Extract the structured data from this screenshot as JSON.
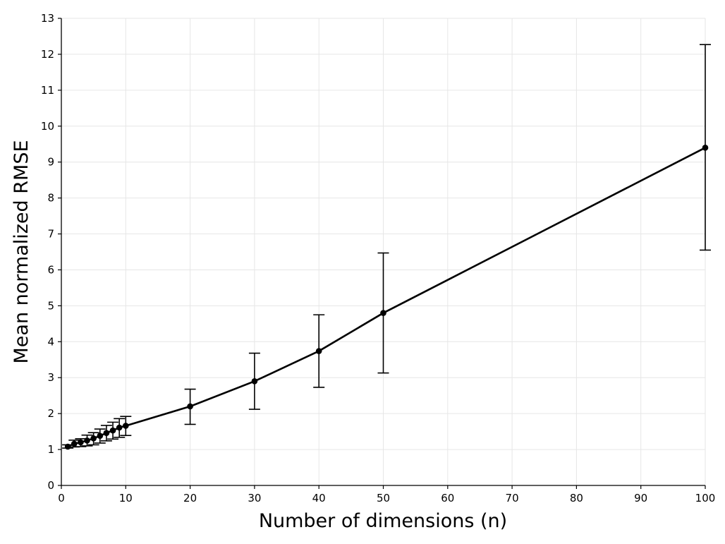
{
  "chart_data": {
    "type": "line",
    "title": "",
    "xlabel": "Number of dimensions (n)",
    "ylabel": "Mean normalized RMSE",
    "xlim": [
      0,
      100
    ],
    "ylim": [
      0,
      13
    ],
    "xticks": [
      0,
      10,
      20,
      30,
      40,
      50,
      60,
      70,
      80,
      90,
      100
    ],
    "yticks": [
      0,
      1,
      2,
      3,
      4,
      5,
      6,
      7,
      8,
      9,
      10,
      11,
      12,
      13
    ],
    "grid": true,
    "series": [
      {
        "color": "#000000",
        "error_bars": true,
        "points": [
          {
            "x": 1,
            "y": 1.08,
            "err_low": 1.04,
            "err_high": 1.13
          },
          {
            "x": 2,
            "y": 1.16,
            "err_low": 1.07,
            "err_high": 1.26
          },
          {
            "x": 3,
            "y": 1.2,
            "err_low": 1.08,
            "err_high": 1.3
          },
          {
            "x": 4,
            "y": 1.25,
            "err_low": 1.1,
            "err_high": 1.4
          },
          {
            "x": 5,
            "y": 1.31,
            "err_low": 1.13,
            "err_high": 1.47
          },
          {
            "x": 6,
            "y": 1.38,
            "err_low": 1.18,
            "err_high": 1.57
          },
          {
            "x": 7,
            "y": 1.46,
            "err_low": 1.24,
            "err_high": 1.67
          },
          {
            "x": 8,
            "y": 1.53,
            "err_low": 1.29,
            "err_high": 1.76
          },
          {
            "x": 9,
            "y": 1.61,
            "err_low": 1.34,
            "err_high": 1.86
          },
          {
            "x": 10,
            "y": 1.66,
            "err_low": 1.39,
            "err_high": 1.92
          },
          {
            "x": 20,
            "y": 2.2,
            "err_low": 1.7,
            "err_high": 2.68
          },
          {
            "x": 30,
            "y": 2.9,
            "err_low": 2.12,
            "err_high": 3.68
          },
          {
            "x": 40,
            "y": 3.74,
            "err_low": 2.73,
            "err_high": 4.75
          },
          {
            "x": 50,
            "y": 4.8,
            "err_low": 3.13,
            "err_high": 6.47
          },
          {
            "x": 100,
            "y": 9.4,
            "err_low": 6.55,
            "err_high": 12.27
          }
        ]
      }
    ]
  }
}
